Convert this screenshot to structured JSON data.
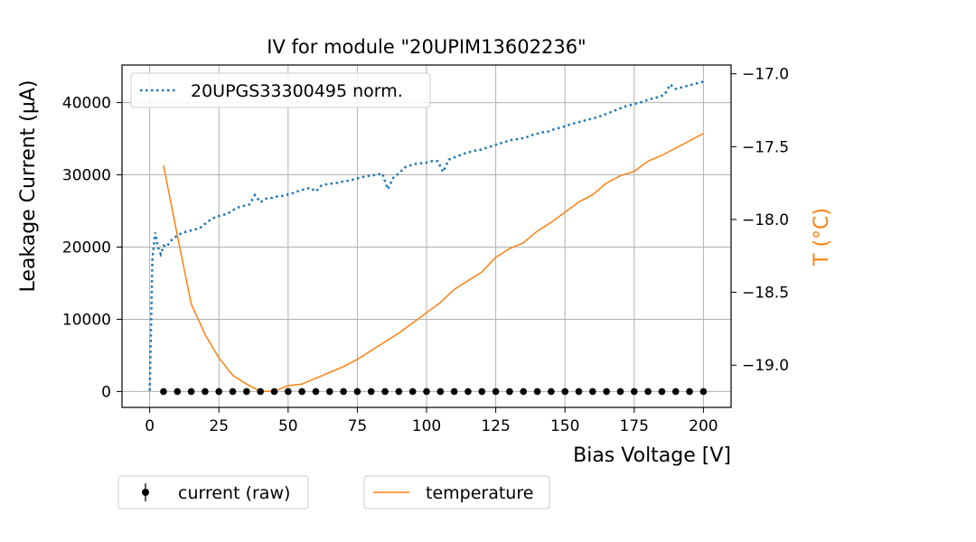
{
  "chart_data": {
    "type": "line",
    "title": "IV for module \"20UPIM13602236\"",
    "xlabel": "Bias Voltage [V]",
    "ylabel": "Leakage Current (µA)",
    "y2label": "T ($^\\circ$C)",
    "y2label_display": "T (°C)",
    "xlim": [
      -10,
      210
    ],
    "ylim": [
      -2200,
      45200
    ],
    "y2lim": [
      -19.29,
      -16.94
    ],
    "x_ticks": [
      0,
      25,
      50,
      75,
      100,
      125,
      150,
      175,
      200
    ],
    "y_ticks": [
      0,
      10000,
      20000,
      30000,
      40000
    ],
    "y2_ticks": [
      -19.0,
      -18.5,
      -18.0,
      -17.5,
      -17.0
    ],
    "y2_tick_labels": [
      "−19.0",
      "−18.5",
      "−18.0",
      "−17.5",
      "−17.0"
    ],
    "grid": true,
    "colors": {
      "normalized": "#1f77b4",
      "temperature": "#ff7f0e",
      "current": "#000000",
      "grid": "#b0b0b0"
    },
    "series": [
      {
        "name": "20UPGS33300495 norm.",
        "axis": "left",
        "style": "dotted",
        "x": [
          0,
          1,
          2,
          3,
          4,
          5,
          6,
          8,
          10,
          12,
          14,
          16,
          18,
          20,
          22,
          24,
          26,
          28,
          30,
          32,
          34,
          36,
          38,
          40,
          42,
          44,
          46,
          48,
          50,
          52,
          54,
          56,
          58,
          60,
          62,
          64,
          66,
          68,
          70,
          72,
          74,
          76,
          78,
          80,
          82,
          84,
          86,
          88,
          90,
          92,
          94,
          96,
          98,
          100,
          102,
          104,
          106,
          108,
          110,
          112,
          114,
          116,
          118,
          120,
          122,
          124,
          126,
          128,
          130,
          132,
          134,
          136,
          138,
          140,
          142,
          144,
          146,
          148,
          150,
          152,
          154,
          156,
          158,
          160,
          162,
          164,
          166,
          168,
          170,
          172,
          174,
          176,
          178,
          180,
          182,
          184,
          186,
          188,
          190,
          192,
          194,
          196,
          198,
          200
        ],
        "values": [
          100,
          18500,
          22000,
          20000,
          19000,
          20200,
          20000,
          21000,
          21600,
          22000,
          22200,
          22400,
          22600,
          23200,
          23800,
          24200,
          24400,
          24600,
          25100,
          25500,
          25700,
          25900,
          27200,
          26200,
          26700,
          26800,
          27000,
          27100,
          27300,
          27500,
          27800,
          28000,
          28200,
          27700,
          28500,
          28700,
          28800,
          28900,
          29100,
          29200,
          29400,
          29600,
          29800,
          29900,
          30000,
          30200,
          28000,
          29600,
          30200,
          31000,
          31300,
          31500,
          31600,
          31700,
          31900,
          31900,
          30400,
          32100,
          32400,
          32700,
          33000,
          33200,
          33400,
          33500,
          33800,
          34000,
          34300,
          34500,
          34800,
          34900,
          35000,
          35200,
          35500,
          35700,
          35900,
          36000,
          36300,
          36500,
          36700,
          37000,
          37200,
          37400,
          37600,
          37800,
          38000,
          38300,
          38600,
          38900,
          39200,
          39500,
          39700,
          39900,
          40100,
          40400,
          40600,
          40800,
          41100,
          42500,
          41900,
          42100,
          42300,
          42500,
          42700,
          42900
        ]
      },
      {
        "name": "temperature",
        "axis": "right",
        "style": "solid",
        "x": [
          5,
          10,
          15,
          20,
          25,
          30,
          35,
          40,
          45,
          50,
          55,
          60,
          65,
          70,
          75,
          80,
          85,
          90,
          95,
          100,
          105,
          110,
          115,
          120,
          125,
          130,
          135,
          140,
          145,
          150,
          155,
          160,
          165,
          170,
          175,
          180,
          185,
          190,
          195,
          200
        ],
        "values": [
          -17.63,
          -18.11,
          -18.58,
          -18.79,
          -18.95,
          -19.07,
          -19.13,
          -19.18,
          -19.18,
          -19.14,
          -19.13,
          -19.09,
          -19.05,
          -19.01,
          -18.96,
          -18.9,
          -18.84,
          -18.78,
          -18.71,
          -18.64,
          -18.57,
          -18.48,
          -18.42,
          -18.36,
          -18.26,
          -18.2,
          -18.16,
          -18.08,
          -18.02,
          -17.95,
          -17.88,
          -17.83,
          -17.75,
          -17.7,
          -17.67,
          -17.6,
          -17.56,
          -17.51,
          -17.46,
          -17.41
        ]
      },
      {
        "name": "current (raw)",
        "axis": "left",
        "style": "markers",
        "x": [
          5,
          10,
          15,
          20,
          25,
          30,
          35,
          40,
          45,
          50,
          55,
          60,
          65,
          70,
          75,
          80,
          85,
          90,
          95,
          100,
          105,
          110,
          115,
          120,
          125,
          130,
          135,
          140,
          145,
          150,
          155,
          160,
          165,
          170,
          175,
          180,
          185,
          190,
          195,
          200
        ],
        "values": [
          0,
          0,
          0,
          0,
          0,
          0,
          0,
          0,
          0,
          0,
          0,
          0,
          0,
          0,
          0,
          0,
          0,
          0,
          0,
          0,
          0,
          0,
          0,
          0,
          0,
          0,
          0,
          0,
          0,
          0,
          0,
          0,
          0,
          0,
          0,
          0,
          0,
          0,
          0,
          0
        ]
      }
    ],
    "legend_top": {
      "placement": "upper-left",
      "entries": [
        "20UPGS33300495 norm."
      ]
    },
    "legend_bottom": {
      "placement": "below-plot",
      "entries": [
        "current (raw)",
        "temperature"
      ]
    }
  }
}
